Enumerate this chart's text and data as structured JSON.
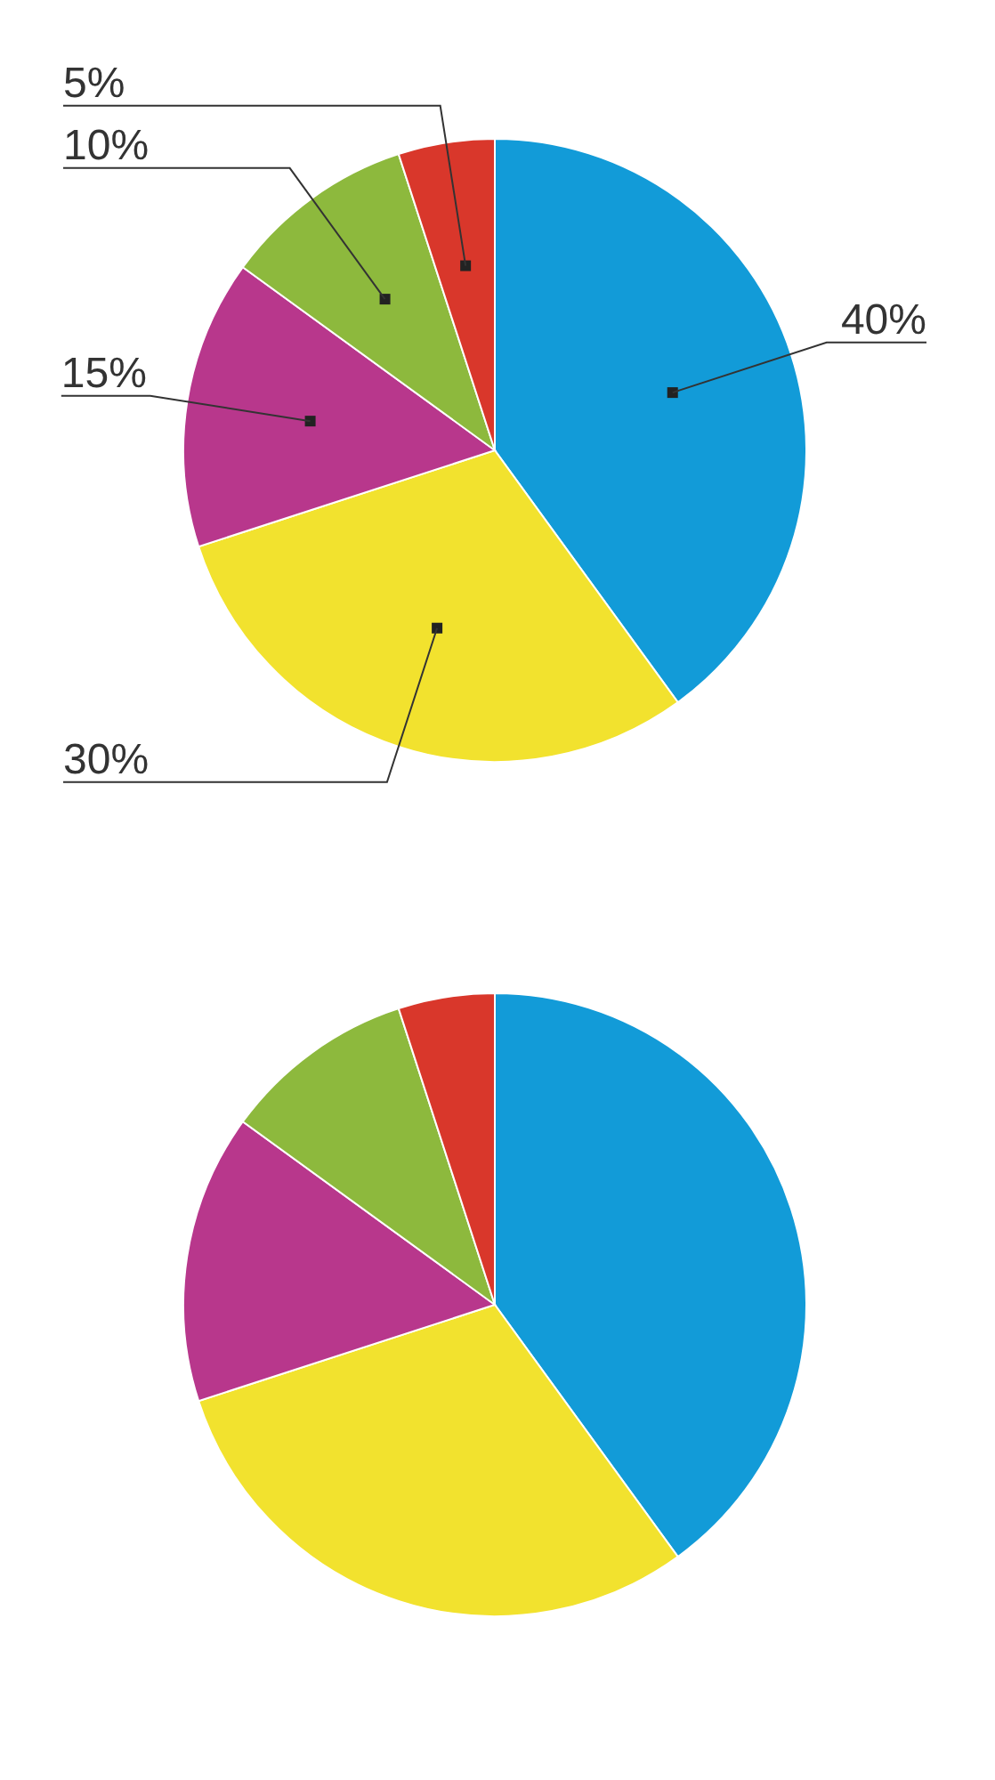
{
  "chart_data": [
    {
      "type": "pie",
      "categories": [
        null,
        null,
        null,
        null,
        null
      ],
      "values": [
        40,
        30,
        15,
        10,
        5
      ],
      "colors": [
        "#129bd8",
        "#f2e22e",
        "#b8378c",
        "#8db93d",
        "#d9372b"
      ],
      "value_labels": [
        "40%",
        "30%",
        "15%",
        "10%",
        "5%"
      ]
    },
    {
      "type": "pie",
      "categories": [
        null,
        null,
        null,
        null,
        null
      ],
      "values": [
        40,
        30,
        15,
        10,
        5
      ],
      "colors": [
        "#129bd8",
        "#f2e22e",
        "#b8378c",
        "#8db93d",
        "#d9372b"
      ]
    }
  ]
}
